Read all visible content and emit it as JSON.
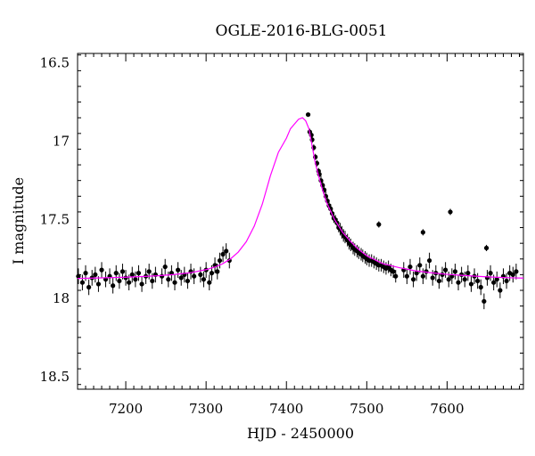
{
  "chart_data": {
    "type": "scatter",
    "title": "OGLE-2016-BLG-0051",
    "xlabel": "HJD - 2450000",
    "ylabel": "I magnitude",
    "xlim": [
      7140,
      7695
    ],
    "ylim": [
      18.58,
      16.44
    ],
    "y_inverted": true,
    "grid": false,
    "legend": "none",
    "x_ticks": [
      7200,
      7300,
      7400,
      7500,
      7600
    ],
    "x_tick_labels": [
      "7200",
      "7300",
      "7400",
      "7500",
      "7600"
    ],
    "y_ticks": [
      16.5,
      17,
      17.5,
      18,
      18.5
    ],
    "y_tick_labels": [
      "16.5",
      "17",
      "17.5",
      "18",
      "18.5"
    ],
    "colors": {
      "data": "#000000",
      "model": "#ff00ff"
    },
    "series": [
      {
        "kind": "points_with_error_bars",
        "points": [
          [
            7141,
            17.86,
            0.05
          ],
          [
            7146,
            17.9,
            0.05
          ],
          [
            7150,
            17.84,
            0.05
          ],
          [
            7154,
            17.93,
            0.05
          ],
          [
            7158,
            17.87,
            0.05
          ],
          [
            7162,
            17.85,
            0.05
          ],
          [
            7166,
            17.91,
            0.05
          ],
          [
            7170,
            17.82,
            0.05
          ],
          [
            7175,
            17.88,
            0.05
          ],
          [
            7180,
            17.86,
            0.05
          ],
          [
            7184,
            17.92,
            0.05
          ],
          [
            7188,
            17.84,
            0.05
          ],
          [
            7192,
            17.89,
            0.05
          ],
          [
            7196,
            17.83,
            0.05
          ],
          [
            7200,
            17.87,
            0.05
          ],
          [
            7204,
            17.9,
            0.05
          ],
          [
            7208,
            17.85,
            0.05
          ],
          [
            7212,
            17.88,
            0.05
          ],
          [
            7216,
            17.84,
            0.05
          ],
          [
            7220,
            17.91,
            0.05
          ],
          [
            7225,
            17.86,
            0.05
          ],
          [
            7229,
            17.83,
            0.05
          ],
          [
            7233,
            17.89,
            0.05
          ],
          [
            7237,
            17.85,
            0.05
          ],
          [
            7245,
            17.86,
            0.05
          ],
          [
            7249,
            17.8,
            0.05
          ],
          [
            7253,
            17.88,
            0.05
          ],
          [
            7257,
            17.84,
            0.05
          ],
          [
            7261,
            17.9,
            0.05
          ],
          [
            7265,
            17.82,
            0.05
          ],
          [
            7269,
            17.87,
            0.05
          ],
          [
            7273,
            17.85,
            0.05
          ],
          [
            7277,
            17.89,
            0.05
          ],
          [
            7281,
            17.83,
            0.05
          ],
          [
            7285,
            17.86,
            0.05
          ],
          [
            7293,
            17.85,
            0.05
          ],
          [
            7297,
            17.88,
            0.05
          ],
          [
            7300,
            17.82,
            0.05
          ],
          [
            7304,
            17.9,
            0.05
          ],
          [
            7307,
            17.84,
            0.05
          ],
          [
            7311,
            17.79,
            0.05
          ],
          [
            7314,
            17.83,
            0.05
          ],
          [
            7317,
            17.76,
            0.05
          ],
          [
            7321,
            17.72,
            0.05
          ],
          [
            7325,
            17.7,
            0.05
          ],
          [
            7329,
            17.76,
            0.05
          ],
          [
            7427,
            16.83,
            0.01
          ],
          [
            7429,
            16.94,
            0.02
          ],
          [
            7431,
            16.96,
            0.02
          ],
          [
            7432,
            16.99,
            0.02
          ],
          [
            7434,
            17.04,
            0.02
          ],
          [
            7436,
            17.1,
            0.02
          ],
          [
            7438,
            17.14,
            0.02
          ],
          [
            7440,
            17.19,
            0.02
          ],
          [
            7441,
            17.21,
            0.02
          ],
          [
            7443,
            17.25,
            0.03
          ],
          [
            7445,
            17.28,
            0.03
          ],
          [
            7447,
            17.31,
            0.03
          ],
          [
            7449,
            17.35,
            0.03
          ],
          [
            7451,
            17.38,
            0.03
          ],
          [
            7453,
            17.41,
            0.03
          ],
          [
            7455,
            17.43,
            0.03
          ],
          [
            7457,
            17.46,
            0.03
          ],
          [
            7459,
            17.49,
            0.03
          ],
          [
            7461,
            17.5,
            0.03
          ],
          [
            7463,
            17.52,
            0.03
          ],
          [
            7465,
            17.55,
            0.03
          ],
          [
            7467,
            17.56,
            0.04
          ],
          [
            7469,
            17.58,
            0.04
          ],
          [
            7471,
            17.6,
            0.04
          ],
          [
            7473,
            17.61,
            0.04
          ],
          [
            7476,
            17.63,
            0.04
          ],
          [
            7478,
            17.65,
            0.04
          ],
          [
            7480,
            17.66,
            0.04
          ],
          [
            7483,
            17.68,
            0.04
          ],
          [
            7485,
            17.69,
            0.04
          ],
          [
            7488,
            17.7,
            0.04
          ],
          [
            7490,
            17.71,
            0.04
          ],
          [
            7493,
            17.72,
            0.04
          ],
          [
            7495,
            17.73,
            0.04
          ],
          [
            7498,
            17.74,
            0.04
          ],
          [
            7500,
            17.75,
            0.04
          ],
          [
            7503,
            17.76,
            0.04
          ],
          [
            7506,
            17.76,
            0.04
          ],
          [
            7509,
            17.77,
            0.04
          ],
          [
            7512,
            17.78,
            0.04
          ],
          [
            7515,
            17.79,
            0.04
          ],
          [
            7518,
            17.79,
            0.04
          ],
          [
            7521,
            17.8,
            0.04
          ],
          [
            7524,
            17.81,
            0.04
          ],
          [
            7527,
            17.8,
            0.04
          ],
          [
            7530,
            17.82,
            0.04
          ],
          [
            7533,
            17.83,
            0.04
          ],
          [
            7536,
            17.86,
            0.04
          ],
          [
            7515,
            17.53,
            0.02
          ],
          [
            7570,
            17.58,
            0.02
          ],
          [
            7604,
            17.45,
            0.02
          ],
          [
            7649,
            17.68,
            0.02
          ],
          [
            7546,
            17.82,
            0.05
          ],
          [
            7550,
            17.86,
            0.05
          ],
          [
            7554,
            17.8,
            0.05
          ],
          [
            7558,
            17.88,
            0.05
          ],
          [
            7562,
            17.84,
            0.05
          ],
          [
            7566,
            17.79,
            0.05
          ],
          [
            7570,
            17.86,
            0.05
          ],
          [
            7574,
            17.83,
            0.05
          ],
          [
            7578,
            17.76,
            0.05
          ],
          [
            7582,
            17.87,
            0.05
          ],
          [
            7586,
            17.84,
            0.05
          ],
          [
            7590,
            17.89,
            0.05
          ],
          [
            7594,
            17.85,
            0.05
          ],
          [
            7598,
            17.82,
            0.05
          ],
          [
            7602,
            17.88,
            0.05
          ],
          [
            7606,
            17.86,
            0.05
          ],
          [
            7610,
            17.83,
            0.05
          ],
          [
            7614,
            17.9,
            0.05
          ],
          [
            7618,
            17.85,
            0.05
          ],
          [
            7622,
            17.88,
            0.05
          ],
          [
            7626,
            17.84,
            0.05
          ],
          [
            7630,
            17.91,
            0.05
          ],
          [
            7634,
            17.86,
            0.05
          ],
          [
            7638,
            17.89,
            0.05
          ],
          [
            7642,
            17.93,
            0.05
          ],
          [
            7646,
            18.02,
            0.05
          ],
          [
            7650,
            17.87,
            0.05
          ],
          [
            7654,
            17.84,
            0.05
          ],
          [
            7658,
            17.9,
            0.05
          ],
          [
            7662,
            17.88,
            0.05
          ],
          [
            7666,
            17.95,
            0.05
          ],
          [
            7670,
            17.86,
            0.05
          ],
          [
            7674,
            17.89,
            0.05
          ],
          [
            7678,
            17.84,
            0.05
          ],
          [
            7682,
            17.85,
            0.05
          ],
          [
            7686,
            17.83,
            0.05
          ]
        ]
      },
      {
        "kind": "model_line",
        "points": [
          [
            7140,
            17.874
          ],
          [
            7160,
            17.872
          ],
          [
            7180,
            17.869
          ],
          [
            7200,
            17.866
          ],
          [
            7220,
            17.862
          ],
          [
            7240,
            17.857
          ],
          [
            7260,
            17.849
          ],
          [
            7280,
            17.838
          ],
          [
            7300,
            17.818
          ],
          [
            7310,
            17.803
          ],
          [
            7320,
            17.782
          ],
          [
            7330,
            17.751
          ],
          [
            7340,
            17.706
          ],
          [
            7350,
            17.64
          ],
          [
            7360,
            17.54
          ],
          [
            7370,
            17.4
          ],
          [
            7380,
            17.22
          ],
          [
            7390,
            17.07
          ],
          [
            7400,
            16.98
          ],
          [
            7405,
            16.92
          ],
          [
            7410,
            16.89
          ],
          [
            7415,
            16.86
          ],
          [
            7420,
            16.85
          ],
          [
            7424,
            16.87
          ],
          [
            7428,
            16.92
          ],
          [
            7432,
            17.03
          ],
          [
            7436,
            17.14
          ],
          [
            7440,
            17.22
          ],
          [
            7445,
            17.31
          ],
          [
            7450,
            17.39
          ],
          [
            7460,
            17.5
          ],
          [
            7470,
            17.58
          ],
          [
            7480,
            17.64
          ],
          [
            7490,
            17.69
          ],
          [
            7500,
            17.73
          ],
          [
            7520,
            17.78
          ],
          [
            7540,
            17.805
          ],
          [
            7560,
            17.825
          ],
          [
            7580,
            17.838
          ],
          [
            7600,
            17.848
          ],
          [
            7620,
            17.855
          ],
          [
            7640,
            17.861
          ],
          [
            7660,
            17.866
          ],
          [
            7680,
            17.87
          ],
          [
            7695,
            17.872
          ]
        ]
      }
    ]
  }
}
